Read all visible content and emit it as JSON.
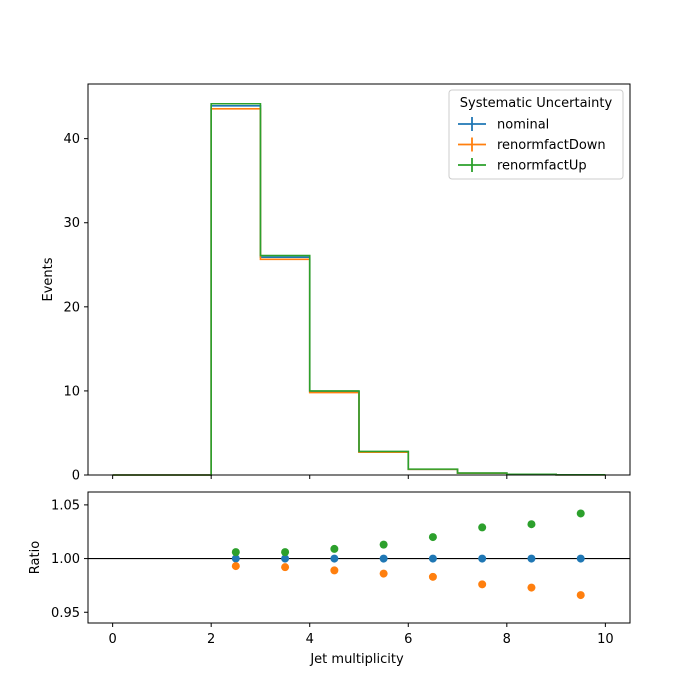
{
  "chart_data": {
    "type": "step",
    "xlabel": "Jet multiplicity",
    "x_edges": [
      0,
      1,
      2,
      3,
      4,
      5,
      6,
      7,
      8,
      9,
      10
    ],
    "xlim": [
      -0.5,
      10.5
    ],
    "x_ticks": [
      "0",
      "2",
      "4",
      "6",
      "8",
      "10"
    ],
    "main": {
      "ylabel": "Events",
      "ylim": [
        0,
        46.5
      ],
      "y_ticks": [
        "0",
        "10",
        "20",
        "30",
        "40"
      ],
      "legend": {
        "title": "Systematic Uncertainty",
        "placement": "top-right"
      },
      "series": [
        {
          "name": "nominal",
          "color": "#1f77b4",
          "values": [
            0,
            0,
            43.9,
            25.9,
            9.9,
            2.75,
            0.68,
            0.22,
            0.08,
            0.02
          ]
        },
        {
          "name": "renormfactDown",
          "color": "#ff7f0e",
          "values": [
            0,
            0,
            43.55,
            25.65,
            9.8,
            2.71,
            0.67,
            0.21,
            0.078,
            0.019
          ]
        },
        {
          "name": "renormfactUp",
          "color": "#2ca02c",
          "values": [
            0,
            0,
            44.15,
            26.1,
            10.0,
            2.8,
            0.7,
            0.23,
            0.083,
            0.021
          ]
        }
      ]
    },
    "ratio": {
      "ylabel": "Ratio",
      "ylim": [
        0.94,
        1.062
      ],
      "y_ticks": [
        "0.95",
        "1.00",
        "1.05"
      ],
      "reference_line": 1.0,
      "x": [
        2.5,
        3.5,
        4.5,
        5.5,
        6.5,
        7.5,
        8.5,
        9.5
      ],
      "series": [
        {
          "name": "nominal",
          "color": "#1f77b4",
          "values": [
            1.0,
            1.0,
            1.0,
            1.0,
            1.0,
            1.0,
            1.0,
            1.0
          ]
        },
        {
          "name": "renormfactDown",
          "color": "#ff7f0e",
          "values": [
            0.993,
            0.992,
            0.989,
            0.986,
            0.983,
            0.976,
            0.973,
            0.966
          ]
        },
        {
          "name": "renormfactUp",
          "color": "#2ca02c",
          "values": [
            1.006,
            1.006,
            1.009,
            1.013,
            1.02,
            1.029,
            1.032,
            1.042
          ]
        }
      ]
    }
  }
}
